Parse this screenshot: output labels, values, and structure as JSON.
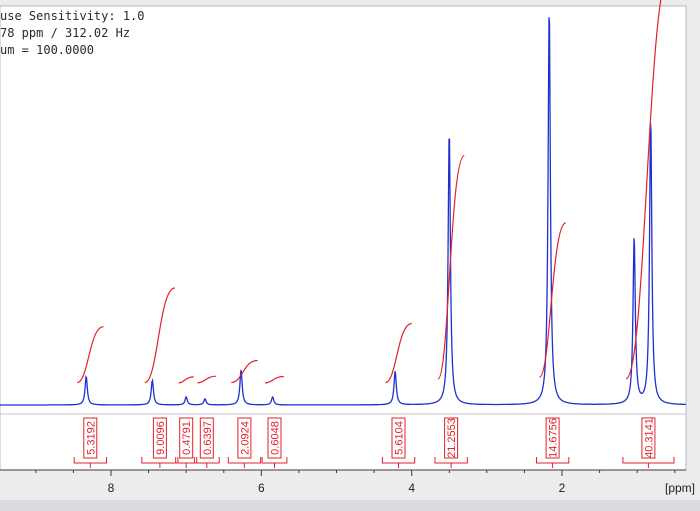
{
  "info": {
    "sensitivity": "use Sensitivity: 1.0",
    "ppm_hz": "78 ppm / 312.02 Hz",
    "sum": "um = 100.0000"
  },
  "colors": {
    "spectrum": "#1f2fd0",
    "integral": "#e0222a",
    "axis": "#3a3a3a",
    "frame": "#b8b8bc",
    "background": "#ffffff"
  },
  "chart_data": {
    "type": "line",
    "title": "",
    "xlabel": "[ppm]",
    "ylabel": "",
    "x_reversed": true,
    "xlim": [
      9.35,
      -0.5
    ],
    "x_ticks": [
      8,
      6,
      4,
      2
    ],
    "x_tick_labels": [
      "8",
      "6",
      "4",
      "2"
    ],
    "peaks": [
      {
        "ppm": 8.33,
        "height": 0.072
      },
      {
        "ppm": 7.45,
        "height": 0.062
      },
      {
        "ppm": 7.0,
        "height": 0.02
      },
      {
        "ppm": 6.75,
        "height": 0.015
      },
      {
        "ppm": 6.27,
        "height": 0.088
      },
      {
        "ppm": 5.85,
        "height": 0.02
      },
      {
        "ppm": 4.22,
        "height": 0.085
      },
      {
        "ppm": 3.5,
        "height": 0.69
      },
      {
        "ppm": 2.17,
        "height": 1.0
      },
      {
        "ppm": 1.04,
        "height": 0.42
      },
      {
        "ppm": 0.82,
        "height": 0.72
      }
    ],
    "integrals": [
      {
        "value": "5.3192",
        "from": 8.45,
        "to": 8.1
      },
      {
        "value": "9.0096",
        "from": 7.55,
        "to": 7.15
      },
      {
        "value": "0.4791",
        "from": 7.1,
        "to": 6.9
      },
      {
        "value": "0.6397",
        "from": 6.85,
        "to": 6.6
      },
      {
        "value": "2.0924",
        "from": 6.4,
        "to": 6.05
      },
      {
        "value": "0.6048",
        "from": 5.95,
        "to": 5.7
      },
      {
        "value": "5.6104",
        "from": 4.35,
        "to": 4.0
      },
      {
        "value": "21.2553",
        "from": 3.65,
        "to": 3.3
      },
      {
        "value": "14.6756",
        "from": 2.3,
        "to": 1.95
      },
      {
        "value": "40.3141",
        "from": 1.15,
        "to": 0.55
      }
    ]
  }
}
